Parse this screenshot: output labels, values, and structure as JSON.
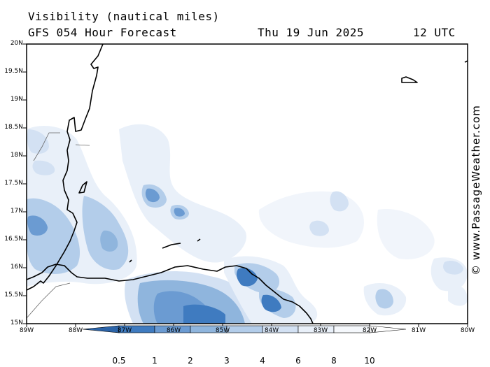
{
  "header": {
    "title": "Visibility (nautical miles)",
    "subtitle": "GFS 054 Hour Forecast",
    "date": "Thu 19 Jun 2025",
    "time": "12 UTC"
  },
  "map": {
    "lat_labels": [
      "20N",
      "19.5N",
      "19N",
      "18.5N",
      "18N",
      "17.5N",
      "17N",
      "16.5N",
      "16N",
      "15.5N",
      "15N"
    ],
    "lon_labels": [
      "89W",
      "88W",
      "87W",
      "86W",
      "85W",
      "84W",
      "83W",
      "82W",
      "81W",
      "80W"
    ],
    "credit": "© www.PassageWeather.com"
  },
  "colorbar": {
    "labels": [
      "0.5",
      "1",
      "2",
      "3",
      "4",
      "6",
      "8",
      "10"
    ],
    "colors": [
      "#2c64a8",
      "#3f7bc0",
      "#6b9bd2",
      "#8fb5dd",
      "#b3cdea",
      "#d3e1f3",
      "#e9f0f9",
      "#ffffff"
    ]
  }
}
